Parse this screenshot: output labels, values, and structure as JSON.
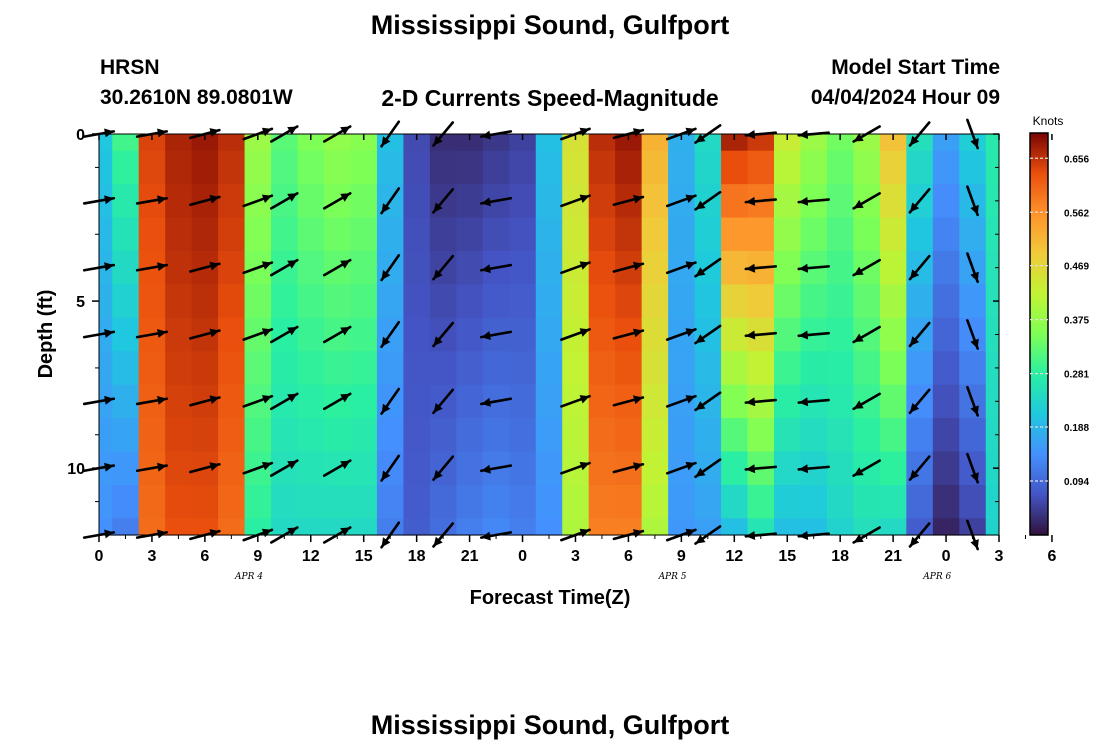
{
  "header": {
    "title": "Mississippi Sound, Gulfport",
    "station": "HRSN",
    "coords": "30.2610N  89.0801W",
    "subtitle": "2-D Currents Speed-Magnitude",
    "start_label": "Model Start Time",
    "start_value": "04/04/2024 Hour 09"
  },
  "footer": {
    "title": "Mississippi Sound, Gulfport"
  },
  "colors": {
    "low": "#2e1f6b",
    "mid": "#b8e837",
    "high": "#7a0403"
  },
  "chart_data": {
    "type": "heatmap",
    "title": "2-D Currents Speed-Magnitude",
    "xlabel": "Forecast Time(Z)",
    "ylabel": "Depth (ft)",
    "x_hours_from_apr4_00z": [
      0,
      51
    ],
    "ylim": [
      12,
      0
    ],
    "x_tick_labels": [
      "0",
      "3",
      "6",
      "9",
      "12",
      "15",
      "18",
      "21",
      "0",
      "3",
      "6",
      "9",
      "12",
      "15",
      "18",
      "21",
      "0",
      "3",
      "6"
    ],
    "y_tick_labels": [
      "0",
      "5",
      "10"
    ],
    "date_labels": [
      "APR 4",
      "APR 5",
      "APR 6"
    ],
    "colorbar": {
      "unit": "Knots",
      "range": [
        0.0,
        0.7
      ],
      "ticks": [
        "0.656",
        "0.562",
        "0.469",
        "0.375",
        "0.281",
        "0.188",
        "0.094"
      ]
    },
    "profile_time_hours": [
      0,
      1.5,
      3,
      4.5,
      6,
      7.5,
      9,
      10.5,
      12,
      13.5,
      15,
      16.5,
      18,
      19.5,
      21,
      22.5,
      24,
      25.5,
      27,
      28.5,
      30,
      31.5,
      33,
      34.5,
      36,
      37.5,
      39,
      40.5,
      42,
      43.5,
      45,
      46.5,
      48,
      49.5,
      51
    ],
    "depth_ft": [
      0,
      1,
      2,
      3,
      4,
      5,
      6,
      7,
      8,
      9,
      10,
      11,
      12
    ],
    "surface_speed_knots": [
      0.21,
      0.3,
      0.64,
      0.67,
      0.68,
      0.66,
      0.38,
      0.32,
      0.35,
      0.37,
      0.36,
      0.2,
      0.06,
      0.03,
      0.03,
      0.04,
      0.05,
      0.2,
      0.45,
      0.66,
      0.68,
      0.52,
      0.18,
      0.24,
      0.67,
      0.65,
      0.43,
      0.38,
      0.34,
      0.38,
      0.5,
      0.25,
      0.16,
      0.22,
      0.27
    ],
    "bottom_speed_knots": [
      0.14,
      0.12,
      0.6,
      0.63,
      0.63,
      0.6,
      0.28,
      0.24,
      0.24,
      0.24,
      0.24,
      0.12,
      0.08,
      0.1,
      0.12,
      0.13,
      0.12,
      0.14,
      0.4,
      0.58,
      0.58,
      0.4,
      0.15,
      0.16,
      0.2,
      0.26,
      0.2,
      0.2,
      0.23,
      0.25,
      0.24,
      0.08,
      0.02,
      0.05,
      0.23
    ],
    "arrow_times_hours": [
      0,
      3,
      6,
      9,
      10.5,
      13.5,
      16.5,
      19.5,
      22.5,
      27,
      30,
      33,
      34.5,
      37.5,
      40.5,
      43.5,
      46.5,
      49.5
    ],
    "arrow_depths_ft": [
      0,
      2,
      4,
      6,
      8,
      10,
      12
    ],
    "arrow_direction_deg": [
      80,
      80,
      75,
      70,
      60,
      60,
      215,
      220,
      260,
      70,
      75,
      70,
      235,
      265,
      265,
      240,
      220,
      160
    ],
    "arrow_speed_knots": [
      0.2,
      0.6,
      0.65,
      0.28,
      0.3,
      0.34,
      0.1,
      0.04,
      0.04,
      0.5,
      0.66,
      0.3,
      0.25,
      0.45,
      0.35,
      0.3,
      0.45,
      0.12
    ]
  }
}
